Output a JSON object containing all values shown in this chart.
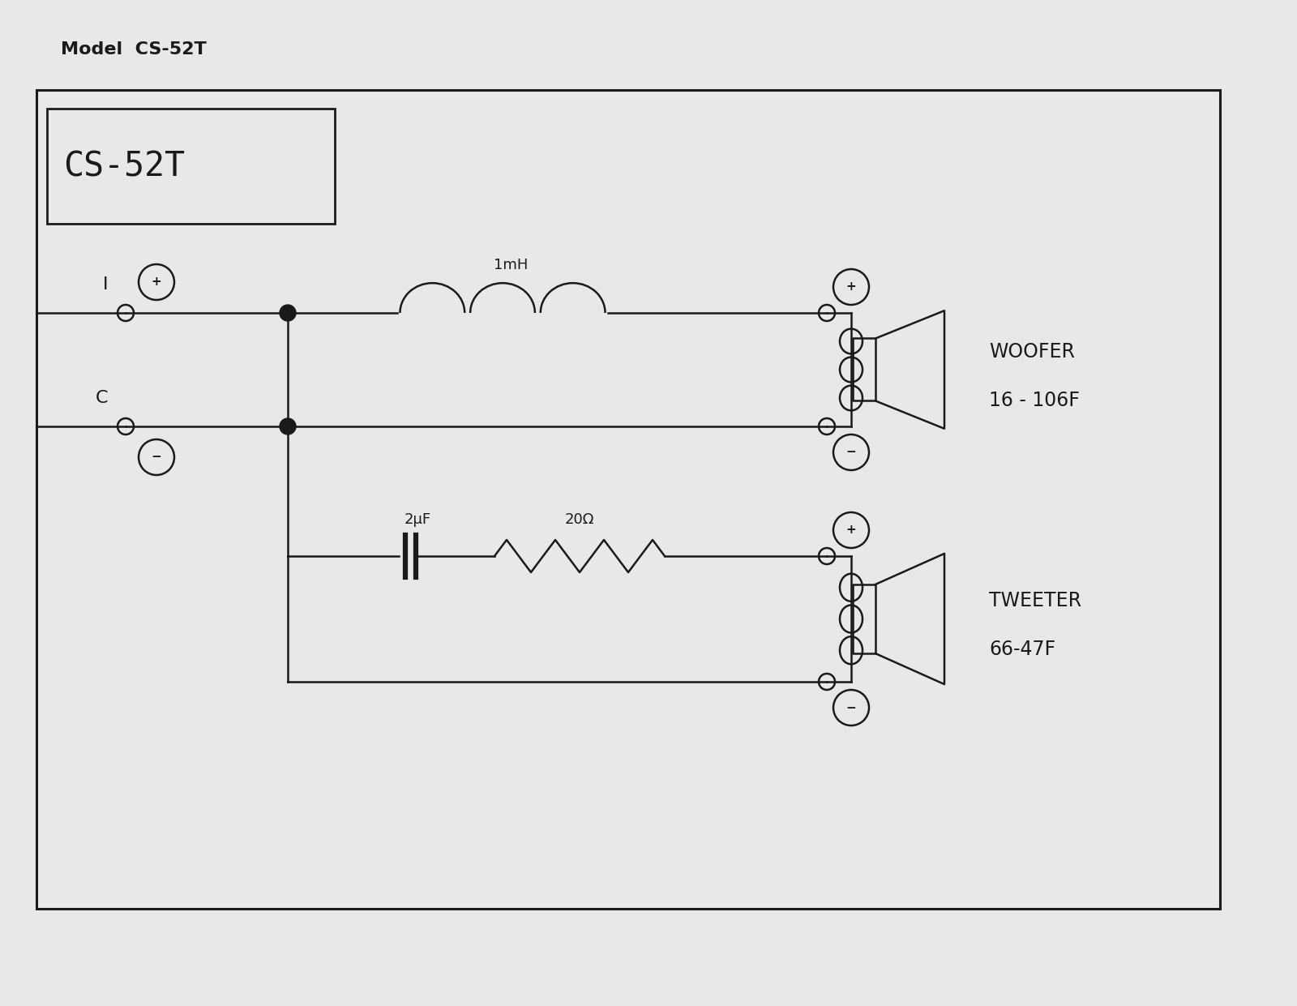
{
  "title": "Model  CS-52T",
  "model_label": "CS-52T",
  "bg_color": "#e8e8e8",
  "line_color": "#1a1a1a",
  "woofer_label": "WOOFER",
  "woofer_model": "16 - 106F",
  "tweeter_label": "TWEETER",
  "tweeter_model": "66-47F",
  "inductor_label": "1mH",
  "capacitor_label": "2μF",
  "resistor_label": "20Ω"
}
